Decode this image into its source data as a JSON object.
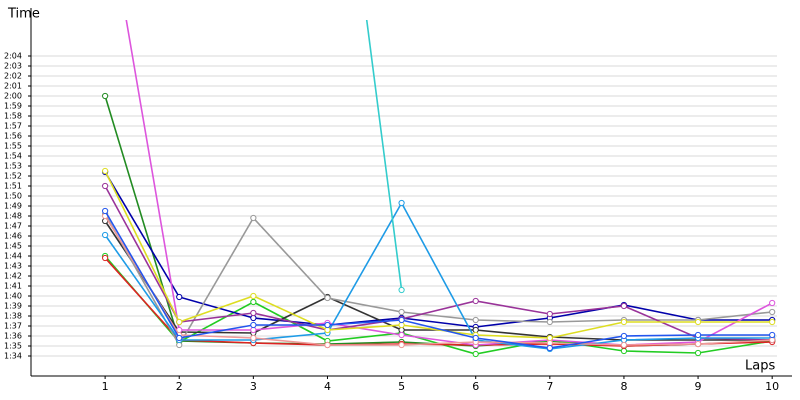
{
  "chart_data": {
    "type": "line",
    "y_label": "Time",
    "x_label": "Laps",
    "x": [
      1,
      2,
      3,
      4,
      5,
      6,
      7,
      8,
      9,
      10
    ],
    "xlim": [
      0,
      10.2
    ],
    "xticks": [
      1,
      2,
      3,
      4,
      5,
      6,
      7,
      8,
      9,
      10
    ],
    "ylim": [
      92,
      127.6
    ],
    "yticks": [
      {
        "value": 94,
        "label": "1:34"
      },
      {
        "value": 95,
        "label": "1:35"
      },
      {
        "value": 96,
        "label": "1:36"
      },
      {
        "value": 97,
        "label": "1:37"
      },
      {
        "value": 98,
        "label": "1:38"
      },
      {
        "value": 99,
        "label": "1:39"
      },
      {
        "value": 100,
        "label": "1:40"
      },
      {
        "value": 101,
        "label": "1:41"
      },
      {
        "value": 102,
        "label": "1:42"
      },
      {
        "value": 103,
        "label": "1:43"
      },
      {
        "value": 104,
        "label": "1:44"
      },
      {
        "value": 105,
        "label": "1:45"
      },
      {
        "value": 106,
        "label": "1:46"
      },
      {
        "value": 107,
        "label": "1:47"
      },
      {
        "value": 108,
        "label": "1:48"
      },
      {
        "value": 109,
        "label": "1:49"
      },
      {
        "value": 110,
        "label": "1:50"
      },
      {
        "value": 111,
        "label": "1:51"
      },
      {
        "value": 112,
        "label": "1:52"
      },
      {
        "value": 113,
        "label": "1:53"
      },
      {
        "value": 114,
        "label": "1:54"
      },
      {
        "value": 115,
        "label": "1:55"
      },
      {
        "value": 116,
        "label": "1:56"
      },
      {
        "value": 117,
        "label": "1:57"
      },
      {
        "value": 118,
        "label": "1:58"
      },
      {
        "value": 119,
        "label": "1:59"
      },
      {
        "value": 120,
        "label": "2:00"
      },
      {
        "value": 121,
        "label": "2:01"
      },
      {
        "value": 122,
        "label": "2:02"
      },
      {
        "value": 123,
        "label": "2:03"
      },
      {
        "value": 124,
        "label": "2:04"
      }
    ],
    "grid": true,
    "series": [
      {
        "color": "#228b22",
        "values": [
          120,
          95.5,
          95.3,
          95.2,
          95.4,
          95.0,
          95.5,
          95.0,
          95.2,
          95.5
        ]
      },
      {
        "color": "#22cc22",
        "values": [
          104,
          95.4,
          99.4,
          95.5,
          96.3,
          94.2,
          95.6,
          94.5,
          94.3,
          95.5
        ]
      },
      {
        "color": "#dd2222",
        "values": [
          103.8,
          95.6,
          95.3,
          95.1,
          95.2,
          95.1,
          95.2,
          95.0,
          95.2,
          95.4
        ]
      },
      {
        "color": "#0000aa",
        "values": [
          112.4,
          99.9,
          97.8,
          97.1,
          97.8,
          96.9,
          97.8,
          99.1,
          97.6,
          97.6
        ]
      },
      {
        "color": "#333333",
        "values": [
          107.5,
          96.4,
          96.3,
          99.9,
          96.6,
          96.6,
          95.9,
          95.6,
          95.6,
          95.6
        ]
      },
      {
        "color": "#999999",
        "values": [
          108.2,
          95.1,
          107.8,
          99.8,
          98.4,
          97.6,
          97.4,
          97.6,
          97.6,
          98.4
        ]
      },
      {
        "color": "#dd55dd",
        "values": [
          140,
          96.6,
          96.6,
          97.3,
          96.1,
          95.1,
          95.6,
          95.1,
          95.4,
          99.3
        ]
      },
      {
        "color": "#993399",
        "values": [
          111,
          97.4,
          98.3,
          96.6,
          97.7,
          99.5,
          98.2,
          99.0,
          95.8,
          95.6
        ]
      },
      {
        "color": "#1e9be6",
        "values": [
          106.1,
          95.6,
          95.6,
          96.3,
          109.3,
          95.6,
          94.7,
          95.6,
          95.8,
          95.8
        ]
      },
      {
        "color": "#33cccc",
        "values": [
          null,
          null,
          null,
          158,
          100.6,
          null,
          null,
          null,
          null,
          null
        ]
      },
      {
        "color": "#dddd22",
        "values": [
          112.5,
          97.4,
          100.0,
          96.6,
          97.1,
          96.1,
          95.8,
          97.4,
          97.4,
          97.4
        ]
      },
      {
        "color": "#ee9999",
        "values": [
          108,
          96.1,
          95.8,
          95.1,
          95.1,
          95.4,
          95.3,
          95.1,
          95.2,
          95.6
        ]
      },
      {
        "color": "#2255ee",
        "values": [
          108.5,
          95.8,
          97.1,
          97.1,
          97.6,
          95.8,
          94.8,
          96.0,
          96.1,
          96.1
        ]
      }
    ]
  }
}
